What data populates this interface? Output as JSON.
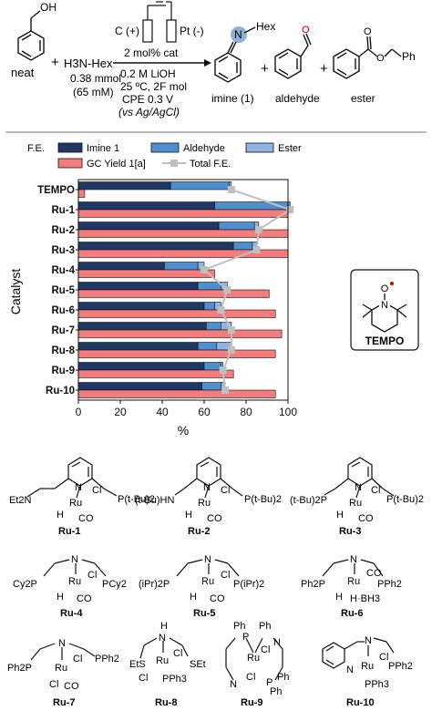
{
  "scheme": {
    "electrode_pos": "C (+)",
    "electrode_neg": "Pt (-)",
    "catalyst_loading": "2 mol% cat",
    "amine_reagent": "H3N-Hex",
    "plus": "+",
    "benzyl_alcohol_label": "neat",
    "amine_amount": "0.38 mmol",
    "amine_conc": "(65 mM)",
    "conditions": [
      "0.2 M LiOH",
      "25 ºC, 2F mol",
      "CPE 0.3 V",
      "(vs Ag/AgCl)"
    ],
    "imine_substituent": "Hex",
    "products": [
      "imine (1)",
      "aldehyde",
      "ester"
    ]
  },
  "legend": {
    "fe_prefix": "F.E.",
    "items": [
      "Imine 1",
      "Aldehyde",
      "Ester",
      "GC Yield 1[a]",
      "Total F.E."
    ]
  },
  "colors": {
    "imine": "#1f3864",
    "aldehyde": "#4f8fd0",
    "ester": "#8fb4e3",
    "gc_yield": "#f47c7c",
    "total_fe": "#c0c0c0"
  },
  "tempo_box": {
    "label": "TEMPO"
  },
  "chart_data": {
    "type": "bar",
    "orientation": "horizontal",
    "categories": [
      "TEMPO",
      "Ru-1",
      "Ru-2",
      "Ru-3",
      "Ru-4",
      "Ru-5",
      "Ru-6",
      "Ru-7",
      "Ru-8",
      "Ru-9",
      "Ru-10"
    ],
    "series": [
      {
        "name": "Imine 1",
        "stack": "F.E.",
        "values": [
          44,
          65,
          67,
          74,
          41,
          57,
          60,
          61,
          57,
          60,
          59
        ]
      },
      {
        "name": "Aldehyde",
        "stack": "F.E.",
        "values": [
          28,
          36,
          17,
          9,
          16,
          11,
          5,
          7,
          9,
          8,
          9
        ]
      },
      {
        "name": "Ester",
        "stack": "F.E.",
        "values": [
          1,
          0,
          2,
          2,
          3,
          3,
          3,
          5,
          7,
          1,
          2
        ]
      },
      {
        "name": "GC Yield 1[a]",
        "values": [
          3,
          100,
          100,
          100,
          65,
          91,
          94,
          97,
          94,
          74,
          94
        ]
      },
      {
        "name": "Total F.E.",
        "type": "line",
        "values": [
          73,
          101,
          86,
          85,
          60,
          71,
          68,
          73,
          73,
          69,
          70
        ]
      }
    ],
    "xlabel": "%",
    "ylabel": "Catalyst",
    "xlim": [
      0,
      100
    ],
    "xticks": [
      0,
      20,
      40,
      60,
      80,
      100
    ],
    "legend_position": "top"
  },
  "catalysts": [
    {
      "id": "Ru-1",
      "left_group": "Et2N",
      "right_group": "P(t-Bu)2"
    },
    {
      "id": "Ru-2",
      "left_group": "(t-Bu)HN",
      "right_group": "P(t-Bu)2"
    },
    {
      "id": "Ru-3",
      "left_group": "(t-Bu)2P",
      "right_group": "P(t-Bu)2"
    },
    {
      "id": "Ru-4",
      "left_group": "Cy2P",
      "right_group": "PCy2"
    },
    {
      "id": "Ru-5",
      "left_group": "(iPr)2P",
      "right_group": "P(iPr)2"
    },
    {
      "id": "Ru-6",
      "left_group": "Ph2P",
      "right_group": "PPh2"
    },
    {
      "id": "Ru-7",
      "left_group": "Ph2P",
      "right_group": "PPh2"
    },
    {
      "id": "Ru-8",
      "left_group": "EtS",
      "right_group": "SEt"
    },
    {
      "id": "Ru-9",
      "left_group": "Ph",
      "right_group": "Ph"
    },
    {
      "id": "Ru-10",
      "left_group": "",
      "right_group": "PPh2"
    }
  ],
  "struct_labels": {
    "ru": "Ru",
    "cl": "Cl",
    "h": "H",
    "co": "CO",
    "n": "N",
    "nh": "NH",
    "pph3": "PPh3",
    "hbh3": "H·BH3",
    "ph": "Ph"
  }
}
